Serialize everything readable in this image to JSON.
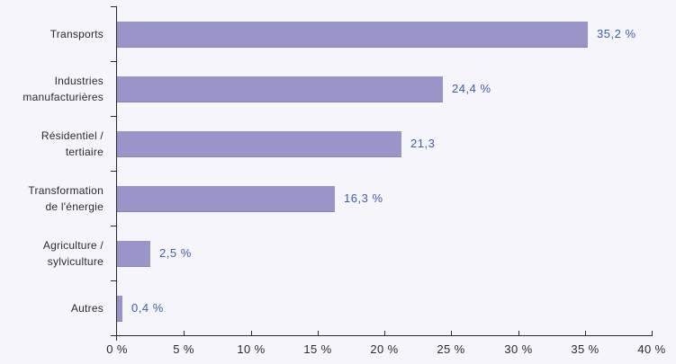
{
  "chart_data": {
    "type": "bar",
    "orientation": "horizontal",
    "categories": [
      "Transports",
      "Industries manufacturières",
      "Résidentiel / tertiaire",
      "Transformation de l'énergie",
      "Agriculture / sylviculture",
      "Autres"
    ],
    "category_display": [
      "Transports",
      "Industries\nmanufacturières",
      "Résidentiel /\ntertiaire",
      "Transformation\nde l'énergie",
      "Agriculture /\nsylviculture",
      "Autres"
    ],
    "values": [
      35.2,
      24.4,
      21.3,
      16.3,
      2.5,
      0.4
    ],
    "value_labels": [
      "35,2 %",
      "24,4 %",
      "21,3",
      "16,3 %",
      "2,5 %",
      "0,4 %"
    ],
    "xlim": [
      0,
      40
    ],
    "x_ticks": [
      0,
      5,
      10,
      15,
      20,
      25,
      30,
      35,
      40
    ],
    "x_tick_labels": [
      "0 %",
      "5 %",
      "10 %",
      "15 %",
      "20 %",
      "25 %",
      "30 %",
      "35 %",
      "40 %"
    ],
    "grid": false,
    "legend": false,
    "colors": {
      "bar": "#9a95c8",
      "bar_edge": "#8781b8",
      "value_label": "#3c5eae",
      "axis": "#2b2b2b",
      "text": "#2b2b2b",
      "background": "#f5f5fb"
    }
  }
}
